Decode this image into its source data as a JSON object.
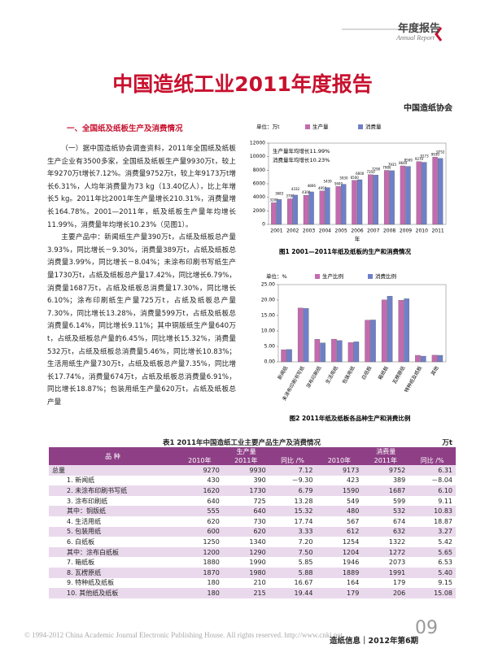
{
  "header": {
    "section": "年度报告",
    "section_en": "Annual Report"
  },
  "title": "中国造纸工业2011年度报告",
  "author": "中国造纸协会",
  "section_heading": "一、全国纸及纸板生产及消费情况",
  "paragraphs": [
    "（一）据中国造纸协会调查资料，2011年全国纸及纸板生产企业有3500多家，全国纸及纸板生产量9930万t，较上年9270万t增长7.12%。消费量9752万t，较上年9173万t增长6.31%，人均年消费量为73 kg（13.40亿人），比上年增长5 kg。2011年比2001年生产量增长210.31%，消费量增长164.78%。2001—2011年，纸及纸板生产量年均增长11.99%，消费量年均增长10.23%（见图1）。",
    "主要产品中：新闻纸生产量390万t，占纸及纸板总产量3.93%，同比增长－9.30%，消费量389万t，占纸及纸板总消费量3.99%，同比增长－8.04%；未涂布印刷书写纸生产量1730万t，占纸及纸板总产量17.42%，同比增长6.79%，消费量1687万t，占纸及纸板总消费量17.30%，同比增长6.10%；涂布印刷纸生产量725万t，占纸及纸板总产量7.30%，同比增长13.28%，消费量599万t，占纸及纸板总消费量6.14%，同比增长9.11%；其中铜版纸生产量640万t，占纸及纸板总产量的6.45%，同比增长15.32%，消费量532万t，占纸及纸板总消费量5.46%，同比增长10.83%；生活用纸生产量730万t，占纸及纸板总产量7.35%，同比增长17.74%，消费量674万t，占纸及纸板总消费量6.91%，同比增长18.87%；包装用纸生产量620万t，占纸及纸板总产量"
  ],
  "chart_data": [
    {
      "type": "bar",
      "unit": "单位：万t",
      "caption": "图1 2001—2011年纸及纸板的生产和消费情况",
      "x_label": "年",
      "annotations": [
        "生产量年均增长11.99%",
        "消费量年均增长10.23%"
      ],
      "categories": [
        "2001",
        "2002",
        "2003",
        "2004",
        "2005",
        "2006",
        "2007",
        "2008",
        "2009",
        "2010",
        "2011"
      ],
      "series": [
        {
          "name": "生产量",
          "color": "#c46bb0",
          "values": [
            3200,
            3780,
            4300,
            4950,
            5600,
            6500,
            7350,
            7980,
            8640,
            9270,
            9930
          ]
        },
        {
          "name": "消费量",
          "color": "#6f80c9",
          "values": [
            3683,
            4332,
            4806,
            5439,
            5930,
            6600,
            7290,
            7935,
            8569,
            9173,
            9752
          ]
        }
      ],
      "ylim": [
        0,
        12000
      ],
      "yticks": [
        0,
        2000,
        4000,
        6000,
        8000,
        10000,
        12000
      ],
      "data_labels": true
    },
    {
      "type": "bar",
      "unit": "单位：%",
      "caption": "图2 2011年纸及纸板各品种生产和消费比例",
      "categories": [
        "新闻纸",
        "未涂布印刷书写纸",
        "涂布印刷纸",
        "生活用纸",
        "包装用纸",
        "白纸板",
        "箱纸板",
        "瓦楞原纸",
        "特种纸及纸板",
        "其他"
      ],
      "series": [
        {
          "name": "生产比例",
          "color": "#c46bb0",
          "values": [
            3.93,
            17.42,
            7.3,
            7.35,
            6.24,
            13.49,
            20.04,
            19.94,
            2.11,
            2.17
          ]
        },
        {
          "name": "消费比例",
          "color": "#6f80c9",
          "values": [
            3.99,
            17.3,
            6.14,
            6.91,
            6.48,
            13.56,
            21.26,
            20.42,
            1.84,
            2.11
          ]
        }
      ],
      "ylim": [
        0,
        25
      ],
      "yticks": [
        {
          "value": 0,
          "label": "0.00"
        },
        {
          "value": 5,
          "label": "5.00"
        },
        {
          "value": 10,
          "label": "10.00"
        },
        {
          "value": 15,
          "label": "15.00"
        },
        {
          "value": 20,
          "label": "20.00"
        },
        {
          "value": 25,
          "label": "25.00"
        }
      ],
      "data_labels": false
    }
  ],
  "table": {
    "title": "表1 2011年中国造纸工业主要产品生产及消费情况",
    "unit": "万t",
    "groups": [
      "品 种",
      "生产量",
      "消费量"
    ],
    "columns": [
      "2010年",
      "2011年",
      "同比 /%",
      "2010年",
      "2011年",
      "同比 /%"
    ],
    "rows": [
      [
        "总量",
        "9270",
        "9930",
        "7.12",
        "9173",
        "9752",
        "6.31"
      ],
      [
        "1. 新闻纸",
        "430",
        "390",
        "－9.30",
        "423",
        "389",
        "－8.04"
      ],
      [
        "2. 未涂布印刷书写纸",
        "1620",
        "1730",
        "6.79",
        "1590",
        "1687",
        "6.10"
      ],
      [
        "3. 涂布印刷纸",
        "640",
        "725",
        "13.28",
        "549",
        "599",
        "9.11"
      ],
      [
        "其中：铜版纸",
        "555",
        "640",
        "15.32",
        "480",
        "532",
        "10.83"
      ],
      [
        "4. 生活用纸",
        "620",
        "730",
        "17.74",
        "567",
        "674",
        "18.87"
      ],
      [
        "5. 包装用纸",
        "600",
        "620",
        "3.33",
        "612",
        "632",
        "3.27"
      ],
      [
        "6. 白纸板",
        "1250",
        "1340",
        "7.20",
        "1254",
        "1322",
        "5.42"
      ],
      [
        "其中：涂布白纸板",
        "1200",
        "1290",
        "7.50",
        "1204",
        "1272",
        "5.65"
      ],
      [
        "7. 箱纸板",
        "1880",
        "1990",
        "5.85",
        "1946",
        "2073",
        "6.53"
      ],
      [
        "8. 瓦楞原纸",
        "1870",
        "1980",
        "5.88",
        "1889",
        "1991",
        "5.40"
      ],
      [
        "9. 特种纸及纸板",
        "180",
        "210",
        "16.67",
        "164",
        "179",
        "9.15"
      ],
      [
        "10. 其他纸及纸板",
        "180",
        "215",
        "19.44",
        "179",
        "206",
        "15.08"
      ]
    ]
  },
  "footer": {
    "copyright": "© 1994-2012 China Academic Journal Electronic Publishing House. All rights reserved.    http://www.cnki.net",
    "journal": "造纸信息｜2012年第6期",
    "page": "09"
  }
}
